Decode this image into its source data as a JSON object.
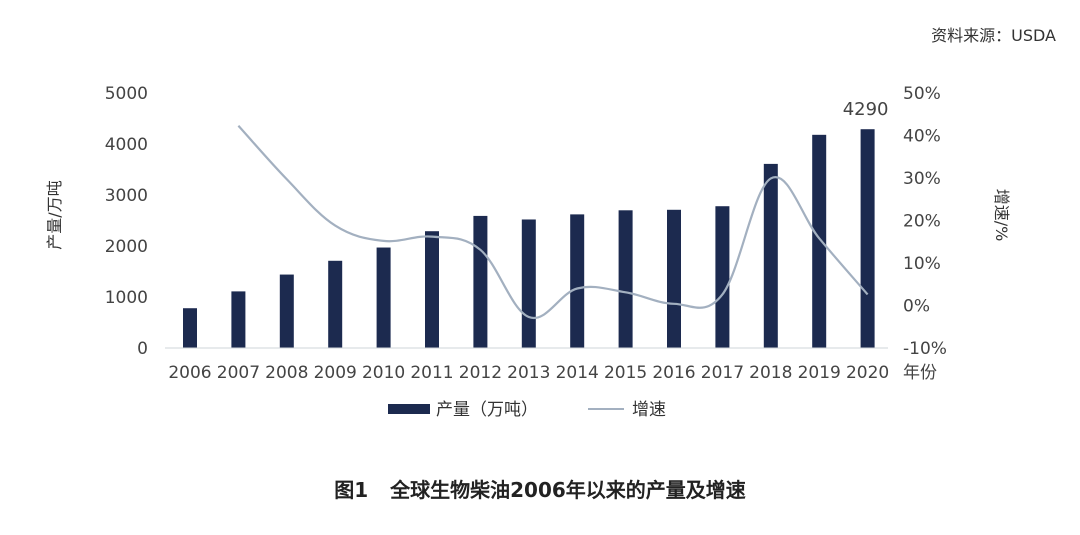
{
  "source_note": "资料来源：USDA",
  "caption": {
    "number": "图1",
    "title": "全球生物柴油2006年以来的产量及增速"
  },
  "chart_data": {
    "type": "bar",
    "title": "",
    "categories": [
      "2006",
      "2007",
      "2008",
      "2009",
      "2010",
      "2011",
      "2012",
      "2013",
      "2014",
      "2015",
      "2016",
      "2017",
      "2018",
      "2019",
      "2020"
    ],
    "xlabel": "年份",
    "ylabel": "产量/万吨",
    "ylabel_right": "增速/%",
    "ylim": [
      0,
      5000
    ],
    "yticks": [
      "0",
      "1000",
      "2000",
      "3000",
      "4000",
      "5000"
    ],
    "ylim_right": [
      -10,
      50
    ],
    "yticks_right": [
      "-10%",
      "0%",
      "10%",
      "20%",
      "30%",
      "40%",
      "50%"
    ],
    "series": [
      {
        "name": "产量（万吨）",
        "type": "bar",
        "color": "#1c2a4f",
        "values": [
          780,
          1110,
          1440,
          1710,
          1970,
          2290,
          2590,
          2520,
          2620,
          2700,
          2710,
          2780,
          3610,
          4180,
          4290
        ]
      },
      {
        "name": "增速",
        "type": "line",
        "color": "#a3b0c0",
        "axis": "right",
        "values": [
          null,
          42.3,
          29.7,
          18.8,
          15.2,
          16.2,
          13.1,
          -2.7,
          4.0,
          3.1,
          0.4,
          2.6,
          29.9,
          15.8,
          2.6
        ]
      }
    ],
    "annotations": [
      {
        "category": "2020",
        "text": "4290"
      }
    ],
    "grid": false,
    "legend": "bottom"
  }
}
